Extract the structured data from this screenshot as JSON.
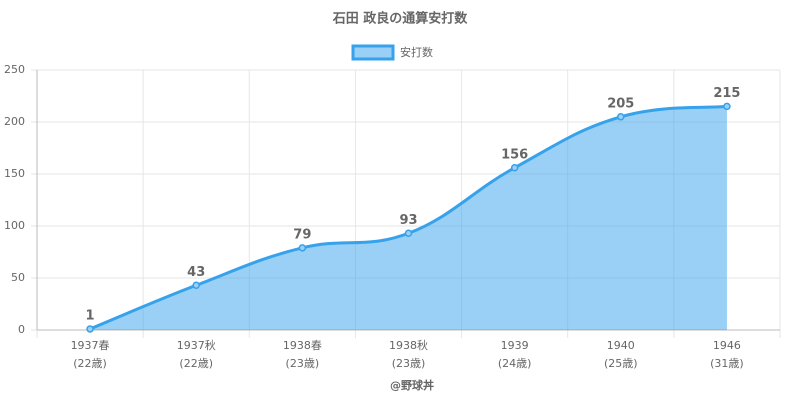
{
  "chart_data": {
    "type": "area",
    "title": "石田 政良の通算安打数",
    "x_label": "@野球丼",
    "categories": [
      [
        "1937春",
        "(22歳)"
      ],
      [
        "1937秋",
        "(22歳)"
      ],
      [
        "1938春",
        "(23歳)"
      ],
      [
        "1938秋",
        "(23歳)"
      ],
      [
        "1939",
        "(24歳)"
      ],
      [
        "1940",
        "(25歳)"
      ],
      [
        "1946",
        "(31歳)"
      ]
    ],
    "series": [
      {
        "name": "安打数",
        "color": "#36a2eb",
        "values": [
          1,
          43,
          79,
          93,
          156,
          205,
          215
        ]
      }
    ],
    "ylim": [
      0,
      250
    ],
    "yticks": [
      0,
      50,
      100,
      150,
      200,
      250
    ],
    "grid": true,
    "legend": "top"
  }
}
